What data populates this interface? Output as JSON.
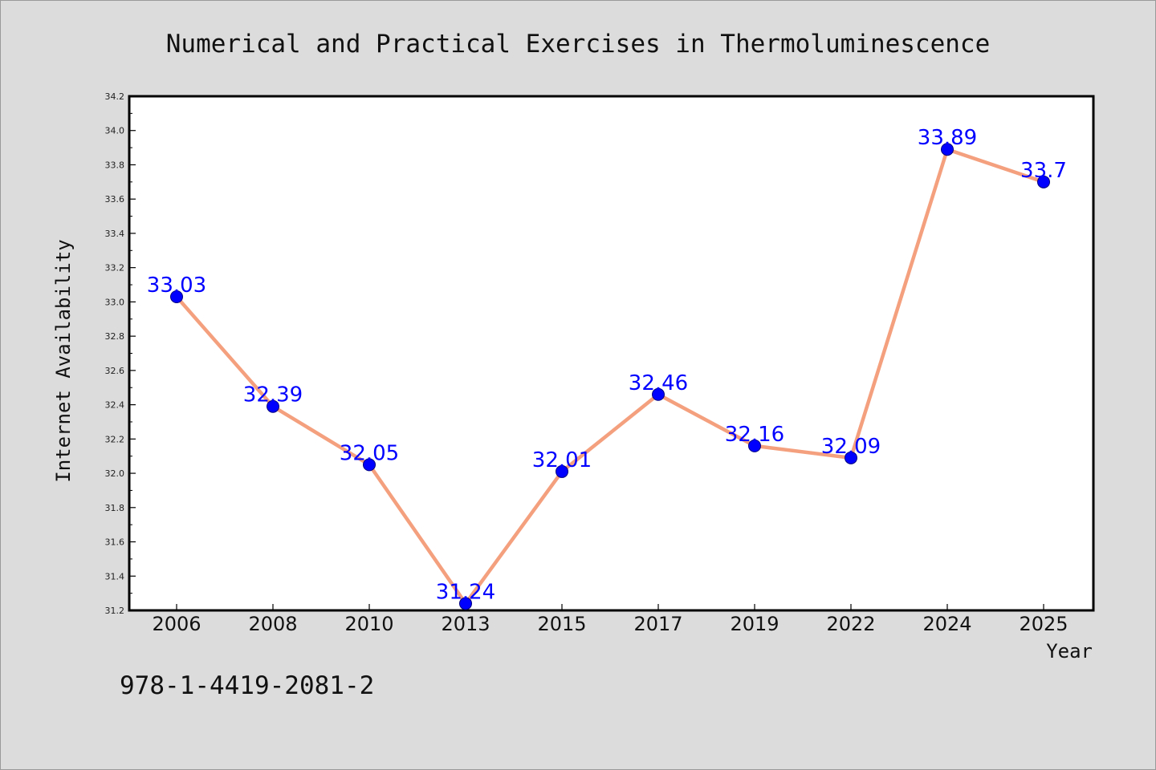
{
  "chart_data": {
    "type": "line",
    "title": "Numerical and Practical Exercises in Thermoluminescence",
    "xlabel": "Year",
    "ylabel": "Internet Availability",
    "categories": [
      "2006",
      "2008",
      "2010",
      "2013",
      "2015",
      "2017",
      "2019",
      "2022",
      "2024",
      "2025"
    ],
    "series": [
      {
        "values": [
          33.03,
          32.39,
          32.05,
          31.24,
          32.01,
          32.46,
          32.16,
          32.09,
          33.89,
          33.7
        ],
        "labels": [
          "33.03",
          "32.39",
          "32.05",
          "31.24",
          "32.01",
          "32.46",
          "32.16",
          "32.09",
          "33.89",
          "33.7"
        ]
      }
    ],
    "ylim": [
      31.2,
      34.2
    ],
    "yticks": [
      "31.2",
      "31.4",
      "31.6",
      "31.8",
      "32.0",
      "32.2",
      "32.4",
      "32.6",
      "32.8",
      "33.0",
      "33.2",
      "33.4",
      "33.6",
      "33.8",
      "34.0",
      "34.2"
    ],
    "grid": false,
    "legend": "none",
    "colors": {
      "line": "#f4a07e",
      "marker": "#0000ff",
      "marker_edge": "#000080",
      "data_label": "#0000ff",
      "plot_background": "#ffffff",
      "figure_background": "#dcdcdc"
    }
  },
  "annotation": {
    "isbn": "978-1-4419-2081-2"
  }
}
